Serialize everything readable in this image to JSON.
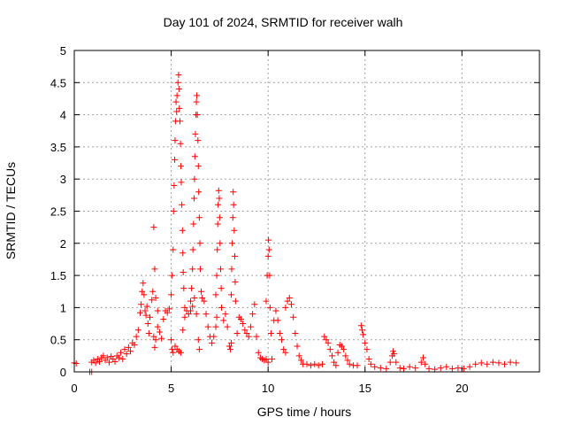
{
  "chart_data": {
    "type": "scatter",
    "title": "Day 101 of 2024, SRMTID for receiver walh",
    "xlabel": "GPS time / hours",
    "ylabel": "SRMTID / TECUs",
    "xlim": [
      0,
      24
    ],
    "ylim": [
      0,
      5
    ],
    "xticks": [
      "0",
      "5",
      "10",
      "15",
      "20"
    ],
    "yticks": [
      "0",
      "0.5",
      "1",
      "1.5",
      "2",
      "2.5",
      "3",
      "3.5",
      "4",
      "4.5",
      "5"
    ],
    "grid": true,
    "marker": "+",
    "color": "#ff0000",
    "series": [
      {
        "name": "SRMTID",
        "points": [
          [
            0.0,
            0.14
          ],
          [
            0.1,
            0.13
          ],
          [
            0.8,
            0.0
          ],
          [
            0.9,
            0.0
          ],
          [
            0.9,
            0.15
          ],
          [
            1.0,
            0.18
          ],
          [
            1.1,
            0.14
          ],
          [
            1.2,
            0.2
          ],
          [
            1.3,
            0.16
          ],
          [
            1.4,
            0.22
          ],
          [
            1.5,
            0.25
          ],
          [
            1.6,
            0.18
          ],
          [
            1.7,
            0.22
          ],
          [
            1.8,
            0.15
          ],
          [
            1.9,
            0.24
          ],
          [
            2.0,
            0.2
          ],
          [
            2.1,
            0.16
          ],
          [
            2.2,
            0.25
          ],
          [
            2.3,
            0.22
          ],
          [
            2.4,
            0.3
          ],
          [
            2.5,
            0.2
          ],
          [
            2.6,
            0.35
          ],
          [
            2.7,
            0.28
          ],
          [
            2.8,
            0.38
          ],
          [
            2.9,
            0.32
          ],
          [
            3.0,
            0.45
          ],
          [
            3.1,
            0.42
          ],
          [
            3.2,
            0.55
          ],
          [
            3.3,
            0.65
          ],
          [
            3.4,
            0.92
          ],
          [
            3.45,
            1.05
          ],
          [
            3.5,
            1.25
          ],
          [
            3.55,
            1.38
          ],
          [
            3.6,
            1.2
          ],
          [
            3.65,
            0.95
          ],
          [
            3.7,
            0.88
          ],
          [
            3.75,
            1.02
          ],
          [
            3.8,
            0.75
          ],
          [
            3.85,
            0.6
          ],
          [
            3.9,
            0.85
          ],
          [
            4.0,
            1.12
          ],
          [
            4.05,
            1.25
          ],
          [
            4.1,
            0.55
          ],
          [
            4.15,
            0.38
          ],
          [
            4.2,
            0.5
          ],
          [
            4.3,
            0.7
          ],
          [
            4.4,
            0.62
          ],
          [
            4.5,
            0.52
          ],
          [
            4.6,
            0.82
          ],
          [
            4.7,
            0.95
          ],
          [
            4.8,
            0.92
          ],
          [
            4.9,
            0.98
          ],
          [
            5.0,
            0.5
          ],
          [
            5.05,
            0.35
          ],
          [
            5.1,
            0.3
          ],
          [
            4.1,
            2.25
          ],
          [
            4.15,
            1.6
          ],
          [
            4.2,
            1.15
          ],
          [
            4.3,
            0.95
          ],
          [
            5.0,
            1.2
          ],
          [
            5.05,
            1.5
          ],
          [
            5.1,
            1.9
          ],
          [
            5.12,
            2.5
          ],
          [
            5.15,
            2.9
          ],
          [
            5.18,
            3.3
          ],
          [
            5.2,
            3.6
          ],
          [
            5.22,
            3.9
          ],
          [
            5.25,
            4.2
          ],
          [
            5.28,
            4.05
          ],
          [
            5.3,
            4.3
          ],
          [
            5.35,
            4.5
          ],
          [
            5.38,
            4.62
          ],
          [
            5.4,
            4.4
          ],
          [
            5.42,
            4.1
          ],
          [
            5.45,
            3.9
          ],
          [
            5.48,
            3.55
          ],
          [
            5.5,
            3.2
          ],
          [
            5.52,
            2.95
          ],
          [
            5.55,
            2.6
          ],
          [
            5.58,
            2.2
          ],
          [
            5.6,
            1.85
          ],
          [
            5.62,
            1.55
          ],
          [
            5.65,
            1.3
          ],
          [
            5.7,
            1.0
          ],
          [
            5.2,
            0.4
          ],
          [
            5.3,
            0.35
          ],
          [
            5.4,
            0.32
          ],
          [
            5.5,
            0.3
          ],
          [
            5.6,
            0.65
          ],
          [
            5.7,
            0.85
          ],
          [
            5.8,
            0.95
          ],
          [
            5.9,
            0.9
          ],
          [
            6.0,
            0.95
          ],
          [
            6.1,
            1.02
          ],
          [
            6.0,
            1.1
          ],
          [
            6.05,
            1.3
          ],
          [
            6.1,
            1.6
          ],
          [
            6.12,
            1.9
          ],
          [
            6.15,
            2.3
          ],
          [
            6.18,
            2.7
          ],
          [
            6.2,
            3.0
          ],
          [
            6.22,
            3.35
          ],
          [
            6.25,
            3.7
          ],
          [
            6.28,
            4.0
          ],
          [
            6.3,
            4.2
          ],
          [
            6.32,
            4.3
          ],
          [
            6.35,
            4.0
          ],
          [
            6.38,
            3.6
          ],
          [
            6.4,
            3.2
          ],
          [
            6.42,
            2.8
          ],
          [
            6.45,
            2.4
          ],
          [
            6.48,
            2.0
          ],
          [
            6.5,
            1.6
          ],
          [
            6.55,
            1.25
          ],
          [
            6.2,
            1.15
          ],
          [
            6.3,
            0.9
          ],
          [
            6.4,
            0.5
          ],
          [
            6.45,
            0.35
          ],
          [
            6.6,
            1.15
          ],
          [
            6.7,
            1.1
          ],
          [
            6.8,
            0.9
          ],
          [
            6.9,
            0.7
          ],
          [
            7.0,
            0.55
          ],
          [
            7.1,
            0.45
          ],
          [
            7.2,
            0.55
          ],
          [
            7.3,
            0.7
          ],
          [
            7.35,
            0.85
          ],
          [
            7.3,
            1.2
          ],
          [
            7.35,
            1.5
          ],
          [
            7.38,
            1.9
          ],
          [
            7.4,
            2.3
          ],
          [
            7.42,
            2.6
          ],
          [
            7.45,
            2.82
          ],
          [
            7.48,
            2.7
          ],
          [
            7.5,
            2.4
          ],
          [
            7.52,
            2.0
          ],
          [
            7.55,
            1.6
          ],
          [
            7.58,
            1.3
          ],
          [
            7.6,
            1.0
          ],
          [
            7.7,
            0.8
          ],
          [
            7.8,
            0.9
          ],
          [
            7.9,
            0.7
          ],
          [
            8.0,
            0.4
          ],
          [
            8.05,
            0.35
          ],
          [
            8.1,
            0.45
          ],
          [
            8.1,
            1.2
          ],
          [
            8.12,
            1.6
          ],
          [
            8.15,
            2.0
          ],
          [
            8.18,
            2.4
          ],
          [
            8.2,
            2.8
          ],
          [
            8.22,
            2.6
          ],
          [
            8.25,
            2.2
          ],
          [
            8.28,
            1.8
          ],
          [
            8.3,
            1.4
          ],
          [
            8.32,
            1.1
          ],
          [
            8.4,
            0.6
          ],
          [
            8.5,
            0.85
          ],
          [
            8.6,
            0.82
          ],
          [
            8.7,
            0.75
          ],
          [
            8.8,
            0.65
          ],
          [
            8.9,
            0.6
          ],
          [
            9.0,
            0.55
          ],
          [
            9.1,
            0.7
          ],
          [
            9.2,
            0.9
          ],
          [
            9.3,
            1.05
          ],
          [
            9.4,
            0.55
          ],
          [
            9.5,
            0.3
          ],
          [
            9.6,
            0.22
          ],
          [
            9.7,
            0.2
          ],
          [
            9.8,
            0.18
          ],
          [
            9.9,
            0.2
          ],
          [
            10.0,
            0.15
          ],
          [
            9.9,
            1.1
          ],
          [
            9.95,
            1.5
          ],
          [
            10.0,
            1.8
          ],
          [
            10.02,
            2.05
          ],
          [
            10.05,
            1.9
          ],
          [
            10.08,
            1.5
          ],
          [
            10.1,
            1.0
          ],
          [
            10.15,
            0.6
          ],
          [
            10.2,
            0.2
          ],
          [
            10.3,
            0.8
          ],
          [
            10.4,
            0.95
          ],
          [
            10.5,
            0.8
          ],
          [
            10.6,
            0.6
          ],
          [
            10.7,
            0.5
          ],
          [
            10.8,
            0.35
          ],
          [
            10.9,
            0.3
          ],
          [
            10.9,
            1.0
          ],
          [
            11.0,
            1.1
          ],
          [
            11.1,
            1.15
          ],
          [
            11.2,
            1.05
          ],
          [
            11.3,
            0.85
          ],
          [
            11.4,
            0.6
          ],
          [
            11.5,
            0.4
          ],
          [
            11.6,
            0.25
          ],
          [
            11.7,
            0.18
          ],
          [
            11.8,
            0.12
          ],
          [
            12.0,
            0.12
          ],
          [
            12.2,
            0.1
          ],
          [
            12.4,
            0.12
          ],
          [
            12.6,
            0.1
          ],
          [
            12.8,
            0.12
          ],
          [
            12.9,
            0.55
          ],
          [
            13.0,
            0.5
          ],
          [
            13.1,
            0.45
          ],
          [
            13.2,
            0.35
          ],
          [
            13.3,
            0.25
          ],
          [
            13.4,
            0.15
          ],
          [
            13.5,
            0.1
          ],
          [
            13.6,
            0.3
          ],
          [
            13.7,
            0.42
          ],
          [
            13.8,
            0.4
          ],
          [
            13.9,
            0.35
          ],
          [
            14.0,
            0.25
          ],
          [
            14.1,
            0.18
          ],
          [
            14.2,
            0.12
          ],
          [
            14.4,
            0.1
          ],
          [
            14.6,
            0.1
          ],
          [
            14.8,
            0.72
          ],
          [
            14.85,
            0.65
          ],
          [
            14.9,
            0.58
          ],
          [
            15.0,
            0.45
          ],
          [
            15.1,
            0.35
          ],
          [
            15.2,
            0.2
          ],
          [
            15.3,
            0.12
          ],
          [
            15.5,
            0.08
          ],
          [
            15.8,
            0.06
          ],
          [
            16.1,
            0.05
          ],
          [
            16.3,
            0.15
          ],
          [
            16.4,
            0.25
          ],
          [
            16.45,
            0.32
          ],
          [
            16.5,
            0.28
          ],
          [
            16.6,
            0.15
          ],
          [
            16.8,
            0.06
          ],
          [
            17.0,
            0.05
          ],
          [
            17.3,
            0.08
          ],
          [
            17.6,
            0.06
          ],
          [
            17.9,
            0.15
          ],
          [
            18.0,
            0.22
          ],
          [
            18.1,
            0.12
          ],
          [
            18.3,
            0.05
          ],
          [
            18.6,
            0.04
          ],
          [
            18.9,
            0.06
          ],
          [
            19.2,
            0.08
          ],
          [
            19.5,
            0.05
          ],
          [
            19.8,
            0.06
          ],
          [
            20.1,
            0.05
          ],
          [
            20.4,
            0.08
          ],
          [
            20.7,
            0.12
          ],
          [
            21.0,
            0.14
          ],
          [
            21.3,
            0.12
          ],
          [
            21.6,
            0.15
          ],
          [
            21.9,
            0.14
          ],
          [
            22.2,
            0.12
          ],
          [
            22.5,
            0.15
          ],
          [
            22.8,
            0.14
          ]
        ]
      }
    ]
  }
}
